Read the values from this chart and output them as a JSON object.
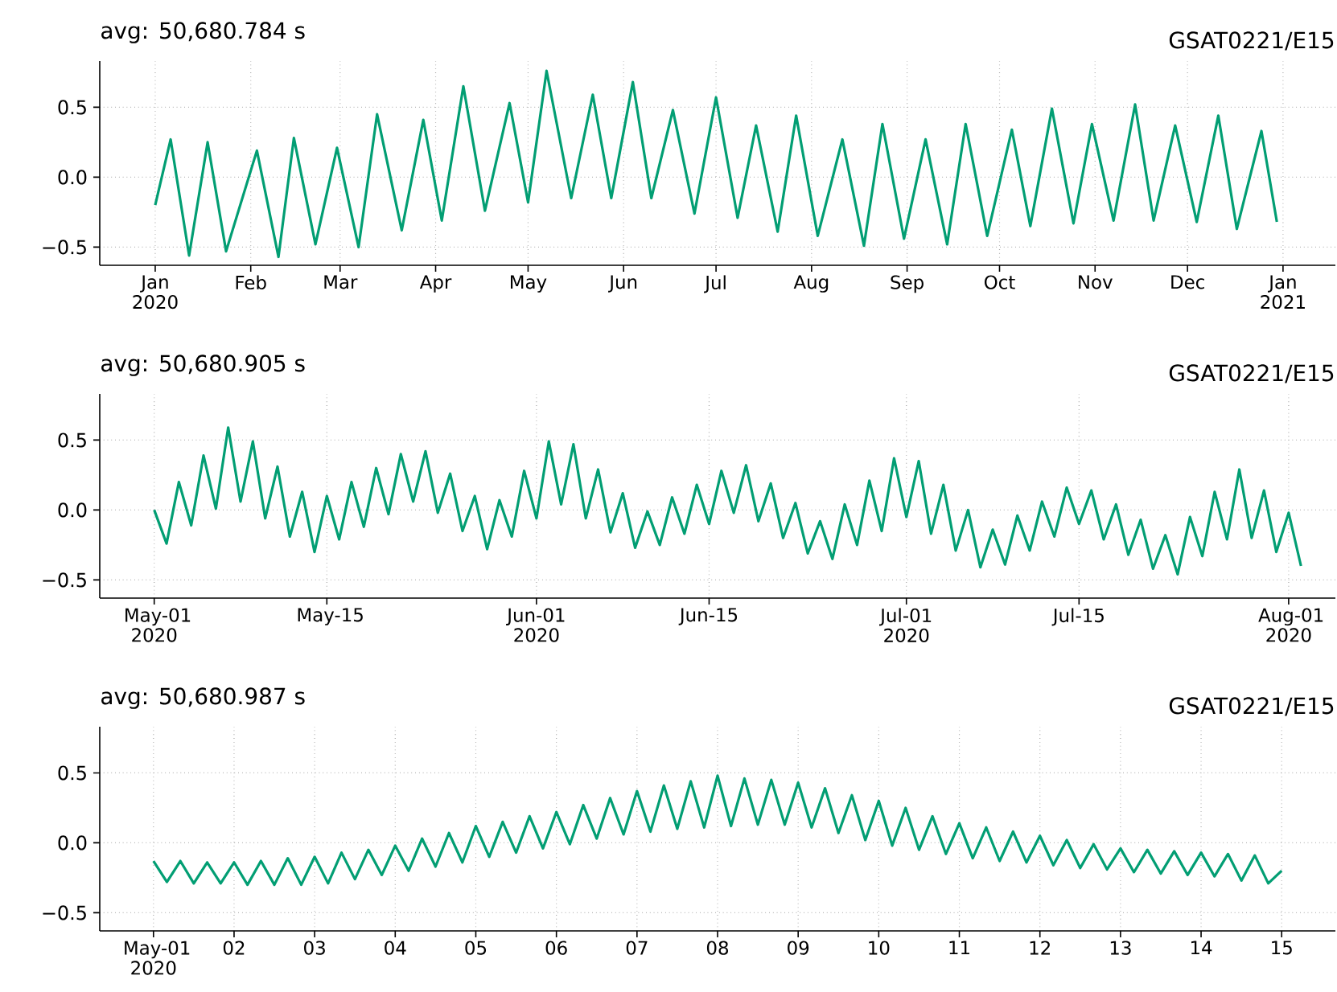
{
  "chart_data": [
    {
      "type": "line",
      "title": "avg: 50,680.784 s",
      "annotations": [
        "GSAT0221/E15"
      ],
      "color": "#029e73",
      "grid": true,
      "xlim": [
        "2019-12-14",
        "2021-01-18"
      ],
      "ylim": [
        -0.63,
        0.83
      ],
      "yticks": [
        {
          "value": -0.5,
          "label": "−0.5"
        },
        {
          "value": 0,
          "label": "0.0"
        },
        {
          "value": 0.5,
          "label": "0.5"
        }
      ],
      "xticks": [
        {
          "value": "2020-01-01",
          "label": "Jan 2020"
        },
        {
          "value": "2020-02-01",
          "label": "Feb"
        },
        {
          "value": "2020-03-01",
          "label": "Mar"
        },
        {
          "value": "2020-04-01",
          "label": "Apr"
        },
        {
          "value": "2020-05-01",
          "label": "May"
        },
        {
          "value": "2020-06-01",
          "label": "Jun"
        },
        {
          "value": "2020-07-01",
          "label": "Jul"
        },
        {
          "value": "2020-08-01",
          "label": "Aug"
        },
        {
          "value": "2020-09-01",
          "label": "Sep"
        },
        {
          "value": "2020-10-01",
          "label": "Oct"
        },
        {
          "value": "2020-11-01",
          "label": "Nov"
        },
        {
          "value": "2020-12-01",
          "label": "Dec"
        },
        {
          "value": "2021-01-01",
          "label": "Jan 2021"
        }
      ],
      "x": [
        "2020-01-01",
        "2020-01-06",
        "2020-01-12",
        "2020-01-18",
        "2020-01-24",
        "2020-02-03",
        "2020-02-10",
        "2020-02-15",
        "2020-02-22",
        "2020-02-29",
        "2020-03-07",
        "2020-03-13",
        "2020-03-21",
        "2020-03-28",
        "2020-04-03",
        "2020-04-10",
        "2020-04-17",
        "2020-04-25",
        "2020-05-01",
        "2020-05-07",
        "2020-05-15",
        "2020-05-22",
        "2020-05-28",
        "2020-06-04",
        "2020-06-10",
        "2020-06-17",
        "2020-06-24",
        "2020-07-01",
        "2020-07-08",
        "2020-07-14",
        "2020-07-21",
        "2020-07-27",
        "2020-08-03",
        "2020-08-11",
        "2020-08-18",
        "2020-08-24",
        "2020-08-31",
        "2020-09-07",
        "2020-09-14",
        "2020-09-20",
        "2020-09-27",
        "2020-10-05",
        "2020-10-11",
        "2020-10-18",
        "2020-10-25",
        "2020-10-31",
        "2020-11-07",
        "2020-11-14",
        "2020-11-20",
        "2020-11-27",
        "2020-12-04",
        "2020-12-11",
        "2020-12-17",
        "2020-12-25",
        "2020-12-30"
      ],
      "values": [
        -0.2,
        0.27,
        -0.56,
        0.25,
        -0.53,
        0.19,
        -0.57,
        0.28,
        -0.48,
        0.21,
        -0.5,
        0.45,
        -0.38,
        0.41,
        -0.31,
        0.65,
        -0.24,
        0.53,
        -0.18,
        0.76,
        -0.15,
        0.59,
        -0.15,
        0.68,
        -0.15,
        0.48,
        -0.26,
        0.57,
        -0.29,
        0.37,
        -0.39,
        0.44,
        -0.42,
        0.27,
        -0.49,
        0.38,
        -0.44,
        0.27,
        -0.48,
        0.38,
        -0.42,
        0.34,
        -0.35,
        0.49,
        -0.33,
        0.38,
        -0.31,
        0.52,
        -0.31,
        0.37,
        -0.32,
        0.44,
        -0.37,
        0.33,
        -0.32
      ]
    },
    {
      "type": "line",
      "title": "avg: 50,680.905 s",
      "annotations": [
        "GSAT0221/E15"
      ],
      "color": "#029e73",
      "grid": true,
      "xlim": [
        "2020-04-26T14:00",
        "2020-08-04T19:00"
      ],
      "ylim": [
        -0.63,
        0.83
      ],
      "yticks": [
        {
          "value": -0.5,
          "label": "−0.5"
        },
        {
          "value": 0,
          "label": "0.0"
        },
        {
          "value": 0.5,
          "label": "0.5"
        }
      ],
      "xticks": [
        {
          "value": "2020-05-01",
          "label": "May-01 2020"
        },
        {
          "value": "2020-05-15",
          "label": "May-15"
        },
        {
          "value": "2020-06-01",
          "label": "Jun-01 2020"
        },
        {
          "value": "2020-06-15",
          "label": "Jun-15"
        },
        {
          "value": "2020-07-01",
          "label": "Jul-01 2020"
        },
        {
          "value": "2020-07-15",
          "label": "Jul-15"
        },
        {
          "value": "2020-08-01",
          "label": "Aug-01 2020"
        }
      ],
      "x": [
        "2020-05-01",
        "2020-05-02",
        "2020-05-03",
        "2020-05-04",
        "2020-05-05",
        "2020-05-06",
        "2020-05-07",
        "2020-05-08",
        "2020-05-09",
        "2020-05-10",
        "2020-05-11",
        "2020-05-12",
        "2020-05-13",
        "2020-05-14",
        "2020-05-15",
        "2020-05-16",
        "2020-05-17",
        "2020-05-18",
        "2020-05-19",
        "2020-05-20",
        "2020-05-21",
        "2020-05-22",
        "2020-05-23",
        "2020-05-24",
        "2020-05-25",
        "2020-05-26",
        "2020-05-27",
        "2020-05-28",
        "2020-05-29",
        "2020-05-30",
        "2020-05-31",
        "2020-06-01",
        "2020-06-02",
        "2020-06-03",
        "2020-06-04",
        "2020-06-05",
        "2020-06-06",
        "2020-06-07",
        "2020-06-08",
        "2020-06-09",
        "2020-06-10",
        "2020-06-11",
        "2020-06-12",
        "2020-06-13",
        "2020-06-14",
        "2020-06-15",
        "2020-06-16",
        "2020-06-17",
        "2020-06-18",
        "2020-06-19",
        "2020-06-20",
        "2020-06-21",
        "2020-06-22",
        "2020-06-23",
        "2020-06-24",
        "2020-06-25",
        "2020-06-26",
        "2020-06-27",
        "2020-06-28",
        "2020-06-29",
        "2020-06-30",
        "2020-07-01",
        "2020-07-02",
        "2020-07-03",
        "2020-07-04",
        "2020-07-05",
        "2020-07-06",
        "2020-07-07",
        "2020-07-08",
        "2020-07-09",
        "2020-07-10",
        "2020-07-11",
        "2020-07-12",
        "2020-07-13",
        "2020-07-14",
        "2020-07-15",
        "2020-07-16",
        "2020-07-17",
        "2020-07-18",
        "2020-07-19",
        "2020-07-20",
        "2020-07-21",
        "2020-07-22",
        "2020-07-23",
        "2020-07-24",
        "2020-07-25",
        "2020-07-26",
        "2020-07-27",
        "2020-07-28",
        "2020-07-29",
        "2020-07-30",
        "2020-07-31",
        "2020-08-01",
        "2020-08-02"
      ],
      "values": [
        0.0,
        -0.24,
        0.2,
        -0.11,
        0.39,
        0.01,
        0.59,
        0.06,
        0.49,
        -0.06,
        0.31,
        -0.19,
        0.13,
        -0.3,
        0.1,
        -0.21,
        0.2,
        -0.12,
        0.3,
        -0.03,
        0.4,
        0.06,
        0.42,
        -0.02,
        0.26,
        -0.15,
        0.1,
        -0.28,
        0.07,
        -0.19,
        0.28,
        -0.06,
        0.49,
        0.04,
        0.47,
        -0.06,
        0.29,
        -0.16,
        0.12,
        -0.27,
        -0.01,
        -0.25,
        0.09,
        -0.17,
        0.18,
        -0.1,
        0.28,
        -0.02,
        0.32,
        -0.08,
        0.19,
        -0.2,
        0.05,
        -0.31,
        -0.08,
        -0.35,
        0.04,
        -0.25,
        0.21,
        -0.15,
        0.37,
        -0.05,
        0.35,
        -0.17,
        0.18,
        -0.29,
        0.0,
        -0.41,
        -0.14,
        -0.39,
        -0.04,
        -0.29,
        0.06,
        -0.19,
        0.16,
        -0.1,
        0.14,
        -0.21,
        0.04,
        -0.32,
        -0.07,
        -0.42,
        -0.18,
        -0.46,
        -0.05,
        -0.33,
        0.13,
        -0.21,
        0.29,
        -0.2,
        0.14,
        -0.3,
        -0.02,
        -0.4
      ]
    },
    {
      "type": "line",
      "title": "avg: 50,680.987 s",
      "annotations": [
        "GSAT0221/E15"
      ],
      "color": "#029e73",
      "grid": true,
      "xlim": [
        "2020-04-30T08:00",
        "2020-05-15T16:00"
      ],
      "ylim": [
        -0.63,
        0.83
      ],
      "yticks": [
        {
          "value": -0.5,
          "label": "−0.5"
        },
        {
          "value": 0,
          "label": "0.0"
        },
        {
          "value": 0.5,
          "label": "0.5"
        }
      ],
      "xticks": [
        {
          "value": "2020-05-01",
          "label": "May-01 2020"
        },
        {
          "value": "2020-05-02",
          "label": "02"
        },
        {
          "value": "2020-05-03",
          "label": "03"
        },
        {
          "value": "2020-05-04",
          "label": "04"
        },
        {
          "value": "2020-05-05",
          "label": "05"
        },
        {
          "value": "2020-05-06",
          "label": "06"
        },
        {
          "value": "2020-05-07",
          "label": "07"
        },
        {
          "value": "2020-05-08",
          "label": "08"
        },
        {
          "value": "2020-05-09",
          "label": "09"
        },
        {
          "value": "2020-05-10",
          "label": "10"
        },
        {
          "value": "2020-05-11",
          "label": "11"
        },
        {
          "value": "2020-05-12",
          "label": "12"
        },
        {
          "value": "2020-05-13",
          "label": "13"
        },
        {
          "value": "2020-05-14",
          "label": "14"
        },
        {
          "value": "2020-05-15",
          "label": "15"
        }
      ],
      "x": [
        "2020-05-01T00:00",
        "2020-05-01T04:00",
        "2020-05-01T08:00",
        "2020-05-01T12:00",
        "2020-05-01T16:00",
        "2020-05-01T20:00",
        "2020-05-02T00:00",
        "2020-05-02T04:00",
        "2020-05-02T08:00",
        "2020-05-02T12:00",
        "2020-05-02T16:00",
        "2020-05-02T20:00",
        "2020-05-03T00:00",
        "2020-05-03T04:00",
        "2020-05-03T08:00",
        "2020-05-03T12:00",
        "2020-05-03T16:00",
        "2020-05-03T20:00",
        "2020-05-04T00:00",
        "2020-05-04T04:00",
        "2020-05-04T08:00",
        "2020-05-04T12:00",
        "2020-05-04T16:00",
        "2020-05-04T20:00",
        "2020-05-05T00:00",
        "2020-05-05T04:00",
        "2020-05-05T08:00",
        "2020-05-05T12:00",
        "2020-05-05T16:00",
        "2020-05-05T20:00",
        "2020-05-06T00:00",
        "2020-05-06T04:00",
        "2020-05-06T08:00",
        "2020-05-06T12:00",
        "2020-05-06T16:00",
        "2020-05-06T20:00",
        "2020-05-07T00:00",
        "2020-05-07T04:00",
        "2020-05-07T08:00",
        "2020-05-07T12:00",
        "2020-05-07T16:00",
        "2020-05-07T20:00",
        "2020-05-08T00:00",
        "2020-05-08T04:00",
        "2020-05-08T08:00",
        "2020-05-08T12:00",
        "2020-05-08T16:00",
        "2020-05-08T20:00",
        "2020-05-09T00:00",
        "2020-05-09T04:00",
        "2020-05-09T08:00",
        "2020-05-09T12:00",
        "2020-05-09T16:00",
        "2020-05-09T20:00",
        "2020-05-10T00:00",
        "2020-05-10T04:00",
        "2020-05-10T08:00",
        "2020-05-10T12:00",
        "2020-05-10T16:00",
        "2020-05-10T20:00",
        "2020-05-11T00:00",
        "2020-05-11T04:00",
        "2020-05-11T08:00",
        "2020-05-11T12:00",
        "2020-05-11T16:00",
        "2020-05-11T20:00",
        "2020-05-12T00:00",
        "2020-05-12T04:00",
        "2020-05-12T08:00",
        "2020-05-12T12:00",
        "2020-05-12T16:00",
        "2020-05-12T20:00",
        "2020-05-13T00:00",
        "2020-05-13T04:00",
        "2020-05-13T08:00",
        "2020-05-13T12:00",
        "2020-05-13T16:00",
        "2020-05-13T20:00",
        "2020-05-14T00:00",
        "2020-05-14T04:00",
        "2020-05-14T08:00",
        "2020-05-14T12:00",
        "2020-05-14T16:00",
        "2020-05-14T20:00",
        "2020-05-15T00:00"
      ],
      "values": [
        -0.13,
        -0.28,
        -0.13,
        -0.29,
        -0.14,
        -0.29,
        -0.14,
        -0.3,
        -0.13,
        -0.3,
        -0.11,
        -0.3,
        -0.1,
        -0.29,
        -0.07,
        -0.26,
        -0.05,
        -0.23,
        -0.02,
        -0.2,
        0.03,
        -0.17,
        0.07,
        -0.14,
        0.12,
        -0.1,
        0.15,
        -0.07,
        0.19,
        -0.04,
        0.22,
        -0.01,
        0.27,
        0.03,
        0.32,
        0.06,
        0.37,
        0.08,
        0.41,
        0.1,
        0.44,
        0.11,
        0.48,
        0.12,
        0.46,
        0.13,
        0.45,
        0.13,
        0.43,
        0.11,
        0.39,
        0.07,
        0.34,
        0.02,
        0.3,
        -0.02,
        0.25,
        -0.05,
        0.19,
        -0.08,
        0.14,
        -0.11,
        0.11,
        -0.13,
        0.08,
        -0.14,
        0.05,
        -0.16,
        0.02,
        -0.18,
        -0.01,
        -0.19,
        -0.04,
        -0.21,
        -0.05,
        -0.22,
        -0.06,
        -0.23,
        -0.07,
        -0.24,
        -0.08,
        -0.27,
        -0.09,
        -0.29,
        -0.2
      ]
    }
  ]
}
